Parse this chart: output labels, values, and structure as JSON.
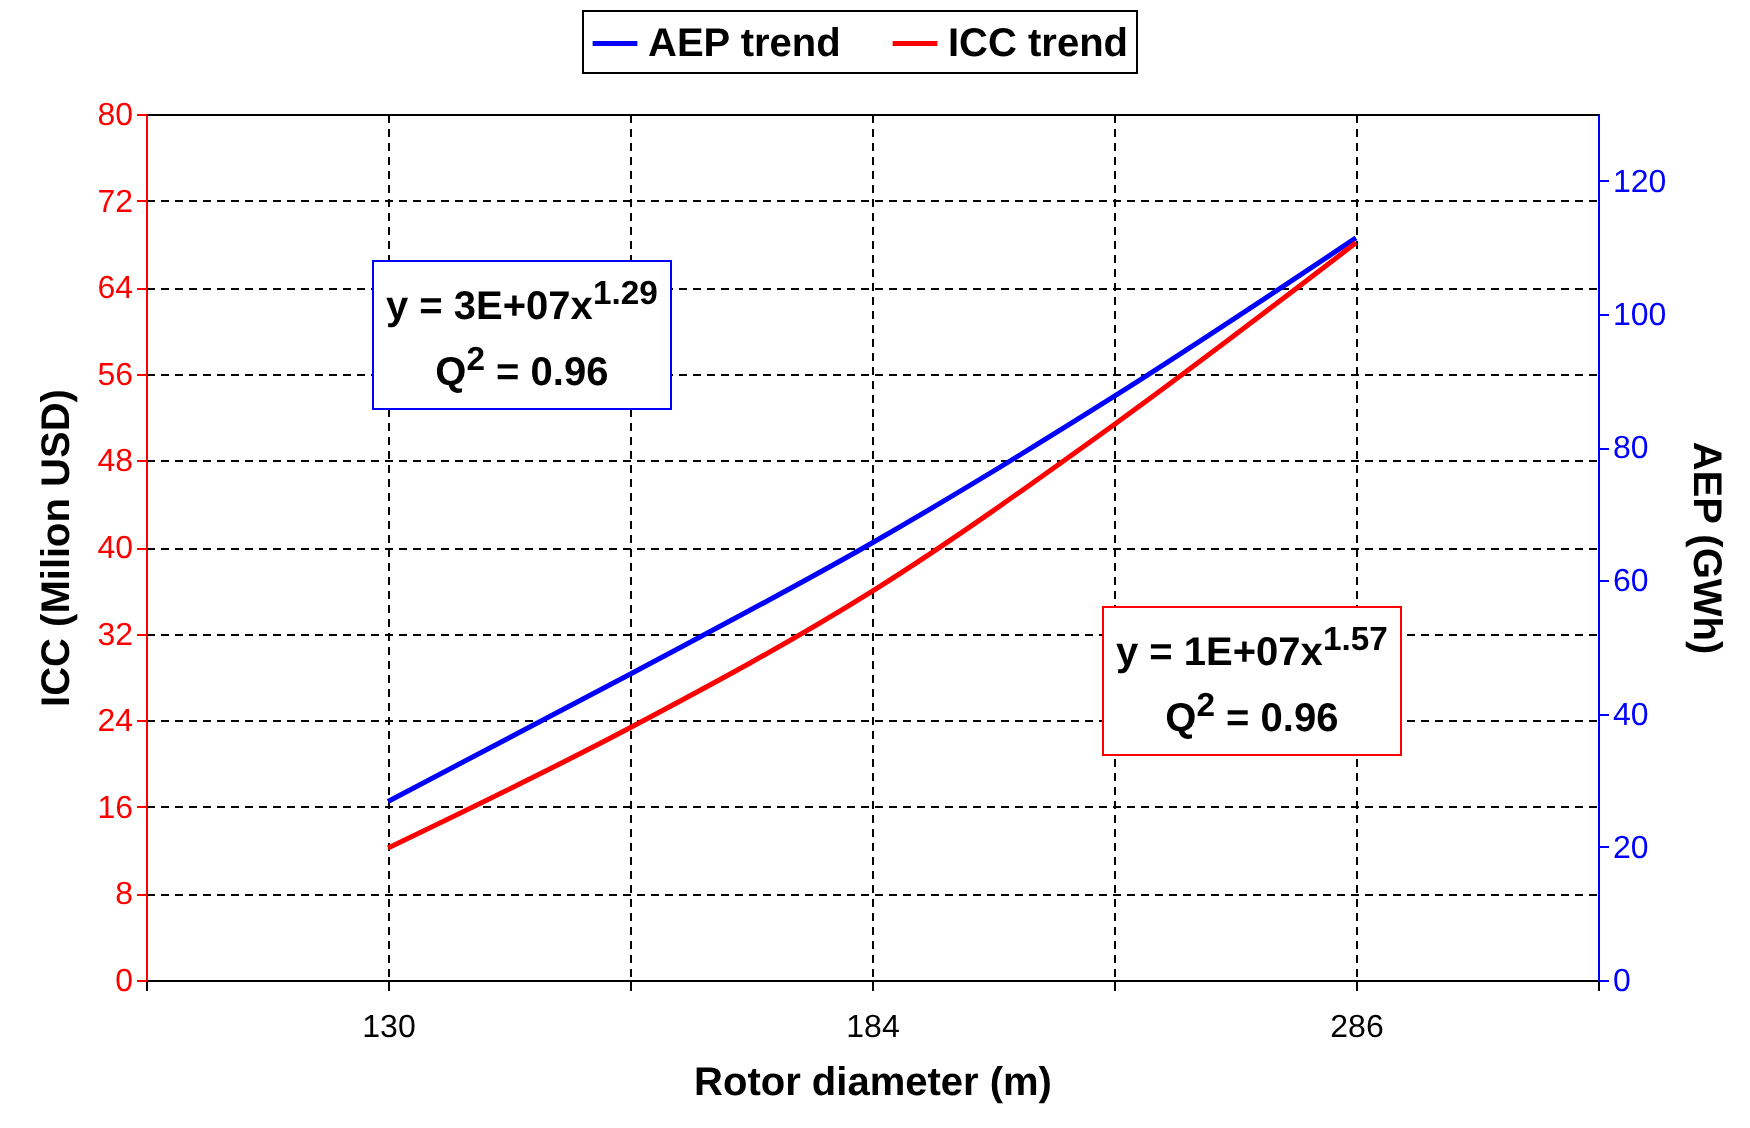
{
  "chart_data": {
    "type": "line",
    "xlabel": "Rotor diameter (m)",
    "ylabel": "ICC (Milion USD)",
    "y2label": "AEP (GWh)",
    "categories": [
      null,
      "130",
      null,
      "184",
      null,
      "286",
      null
    ],
    "series": [
      {
        "name": "AEP trend",
        "color": "#0000ff",
        "axis": "y2",
        "values": [
          null,
          26.8,
          45.9,
          65.6,
          87.6,
          111.4,
          null
        ]
      },
      {
        "name": "ICC trend",
        "color": "#ff0000",
        "values": [
          null,
          12.2,
          23.3,
          35.9,
          51.3,
          68.1,
          null
        ]
      }
    ],
    "ylim": [
      0,
      80
    ],
    "yticks": [
      0,
      8,
      16,
      24,
      32,
      40,
      48,
      56,
      64,
      72,
      80
    ],
    "y2lim": [
      0,
      130
    ],
    "y2ticks": [
      0,
      20,
      40,
      60,
      80,
      100,
      120
    ],
    "grid": true,
    "legend": "top",
    "line_style": "solid",
    "annotations": [
      "y = 3E+07x$^{1.29}$\nQ$^{2}$ = 0.96",
      "y = 1E+07x$^{1.57}$\nQ$^{2}$ = 0.96"
    ]
  }
}
